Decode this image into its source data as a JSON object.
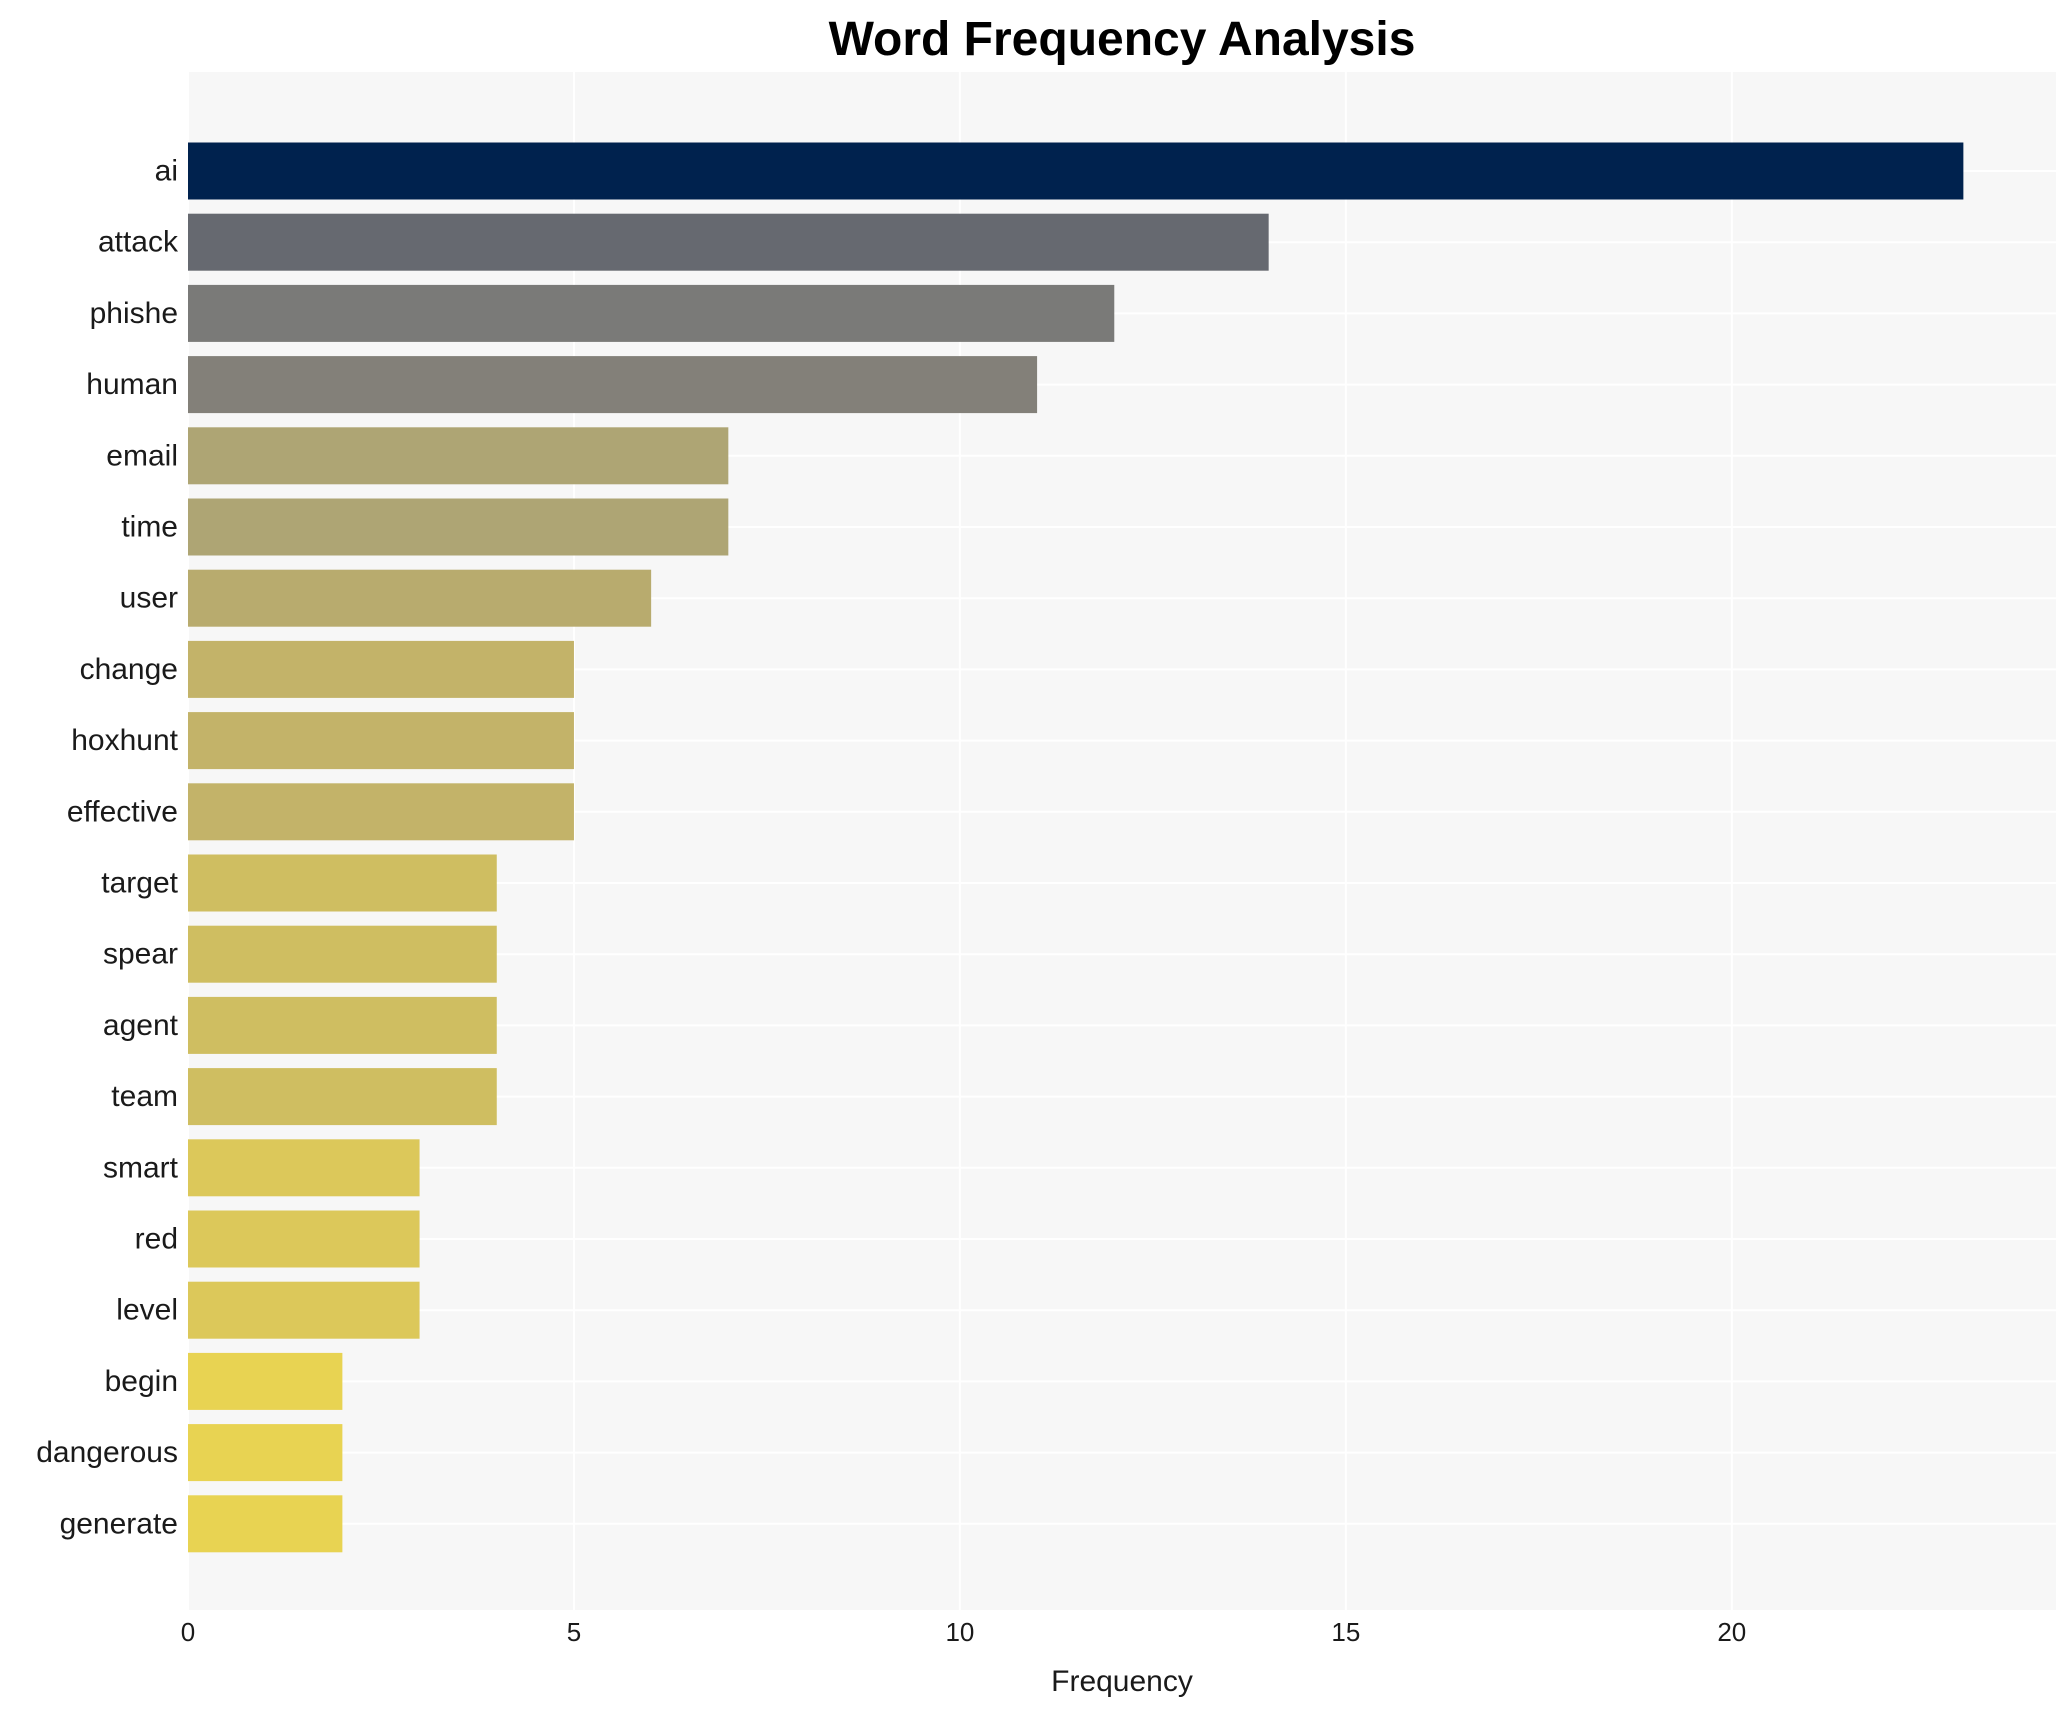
{
  "chart_data": {
    "type": "bar",
    "orientation": "horizontal",
    "title": "Word Frequency Analysis",
    "xlabel": "Frequency",
    "ylabel": "",
    "xlim": [
      0,
      24.2
    ],
    "xticks": [
      0,
      5,
      10,
      15,
      20
    ],
    "grid": true,
    "categories": [
      "ai",
      "attack",
      "phishe",
      "human",
      "email",
      "time",
      "user",
      "change",
      "hoxhunt",
      "effective",
      "target",
      "spear",
      "agent",
      "team",
      "smart",
      "red",
      "level",
      "begin",
      "dangerous",
      "generate"
    ],
    "values": [
      23,
      14,
      12,
      11,
      7,
      7,
      6,
      5,
      5,
      5,
      4,
      4,
      4,
      4,
      3,
      3,
      3,
      2,
      2,
      2
    ],
    "colors": [
      "#00224e",
      "#666970",
      "#7a7a78",
      "#838079",
      "#aea574",
      "#aea574",
      "#b8ab6e",
      "#c3b369",
      "#c3b369",
      "#c3b369",
      "#cfbe61",
      "#cfbe61",
      "#cfbe61",
      "#cfbe61",
      "#dcc85a",
      "#dcc85a",
      "#dcc85a",
      "#e8d352",
      "#e8d352",
      "#e8d352"
    ],
    "background": "#f7f7f7"
  }
}
